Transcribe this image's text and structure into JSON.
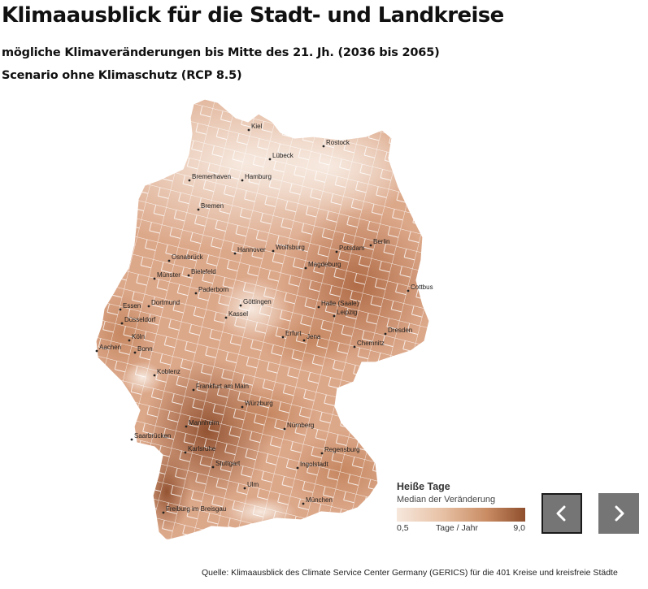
{
  "title": "Klimaausblick für die Stadt- und Landkreise",
  "subtitle1": "mögliche Klimaveränderungen bis Mitte des 21. Jh. (2036 bis 2065)",
  "subtitle2": "Scenario ohne Klimaschutz (RCP 8.5)",
  "map": {
    "cities": [
      {
        "name": "Kiel"
      },
      {
        "name": "Rostock"
      },
      {
        "name": "Lübeck"
      },
      {
        "name": "Bremerhaven"
      },
      {
        "name": "Hamburg"
      },
      {
        "name": "Bremen"
      },
      {
        "name": "Berlin"
      },
      {
        "name": "Potsdam"
      },
      {
        "name": "Wolfsburg"
      },
      {
        "name": "Hannover"
      },
      {
        "name": "Osnabrück"
      },
      {
        "name": "Bielefeld"
      },
      {
        "name": "Magdeburg"
      },
      {
        "name": "Münster"
      },
      {
        "name": "Paderborn"
      },
      {
        "name": "Cottbus"
      },
      {
        "name": "Essen"
      },
      {
        "name": "Dortmund"
      },
      {
        "name": "Göttingen"
      },
      {
        "name": "Halle (Saale)"
      },
      {
        "name": "Leipzig"
      },
      {
        "name": "Kassel"
      },
      {
        "name": "Düsseldorf"
      },
      {
        "name": "Dresden"
      },
      {
        "name": "Köln"
      },
      {
        "name": "Erfurt"
      },
      {
        "name": "Jena"
      },
      {
        "name": "Aachen"
      },
      {
        "name": "Bonn"
      },
      {
        "name": "Chemnitz"
      },
      {
        "name": "Koblenz"
      },
      {
        "name": "Frankfurt am Main"
      },
      {
        "name": "Würzburg"
      },
      {
        "name": "Mannheim"
      },
      {
        "name": "Nürnberg"
      },
      {
        "name": "Saarbrücken"
      },
      {
        "name": "Regensburg"
      },
      {
        "name": "Karlsruhe"
      },
      {
        "name": "Stuttgart"
      },
      {
        "name": "Ingolstadt"
      },
      {
        "name": "Ulm"
      },
      {
        "name": "München"
      },
      {
        "name": "Freiburg im Breisgau"
      }
    ],
    "colors": {
      "low": "#f6e7dc",
      "mid": "#e0b493",
      "high": "#8f4f2e",
      "border": "#ffffff"
    }
  },
  "legend": {
    "title": "Heiße Tage",
    "subtitle": "Median der Veränderung",
    "min": "0,5",
    "unit": "Tage / Jahr",
    "max": "9,0"
  },
  "nav": {
    "prev_icon": "chevron-left-icon",
    "next_icon": "chevron-right-icon"
  },
  "source": "Quelle: Klimaausblick des Climate Service Center Germany (GERICS) für die 401 Kreise und kreisfreie Städte"
}
